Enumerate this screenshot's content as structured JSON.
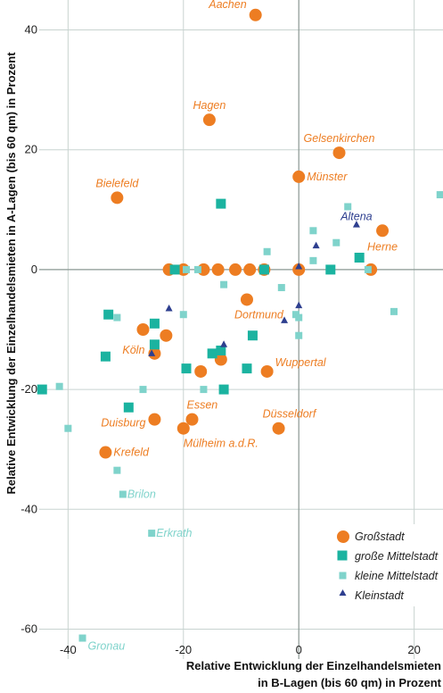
{
  "chart_data": {
    "type": "scatter",
    "title": "",
    "xlabel_lines": [
      "Relative Entwicklung der Einzelhandelsmieten",
      "in B-Lagen (bis 60 qm) in Prozent"
    ],
    "ylabel": "Relative Entwicklung der Einzelhandelsmieten in A-Lagen (bis 60 qm) in Prozent",
    "xlim": [
      -45,
      25
    ],
    "ylim": [
      -65,
      45
    ],
    "xticks": [
      -40,
      -20,
      0,
      20
    ],
    "yticks": [
      -60,
      -40,
      -20,
      0,
      20,
      40
    ],
    "xtick_labels": [
      "-40",
      "-20",
      "0",
      "20"
    ],
    "ytick_labels": [
      "-60",
      "-40",
      "-20",
      "0",
      "20",
      "40"
    ],
    "grid": true,
    "legend_position": "bottom-right",
    "colors": {
      "grossstadt": "#ED7D22",
      "grosse_mittelstadt": "#1BB3A0",
      "kleine_mittelstadt": "#7FD3CB",
      "kleinstadt": "#2E3F8F"
    },
    "series": [
      {
        "name": "Großstadt",
        "key": "grossstadt",
        "marker": "circle",
        "points": [
          {
            "x": -7.5,
            "y": 42.5,
            "label": "Aachen"
          },
          {
            "x": -15.5,
            "y": 25,
            "label": "Hagen"
          },
          {
            "x": 7,
            "y": 19.5,
            "label": "Gelsenkirchen"
          },
          {
            "x": 0,
            "y": 15.5,
            "label": "Münster"
          },
          {
            "x": -31.5,
            "y": 12,
            "label": "Bielefeld"
          },
          {
            "x": 14.5,
            "y": 6.5,
            "label": "Herne"
          },
          {
            "x": -22.5,
            "y": 0
          },
          {
            "x": -20,
            "y": 0
          },
          {
            "x": -16.5,
            "y": 0
          },
          {
            "x": -14,
            "y": 0
          },
          {
            "x": -11,
            "y": 0
          },
          {
            "x": -8.5,
            "y": 0
          },
          {
            "x": -6,
            "y": 0
          },
          {
            "x": 0,
            "y": 0
          },
          {
            "x": 12.5,
            "y": 0
          },
          {
            "x": -9,
            "y": -5,
            "label": "Dortmund"
          },
          {
            "x": -27,
            "y": -10
          },
          {
            "x": -23,
            "y": -11
          },
          {
            "x": -25,
            "y": -14,
            "label": "Köln"
          },
          {
            "x": -13.5,
            "y": -15
          },
          {
            "x": -17,
            "y": -17
          },
          {
            "x": -5.5,
            "y": -17,
            "label": "Wuppertal"
          },
          {
            "x": -25,
            "y": -25,
            "label": "Duisburg"
          },
          {
            "x": -18.5,
            "y": -25,
            "label": "Essen"
          },
          {
            "x": -20,
            "y": -26.5,
            "label": "Mülheim a.d.R."
          },
          {
            "x": -3.5,
            "y": -26.5,
            "label": "Düsseldorf"
          },
          {
            "x": -33.5,
            "y": -30.5,
            "label": "Krefeld"
          }
        ]
      },
      {
        "name": "große Mittelstadt",
        "key": "grosse_mittelstadt",
        "marker": "square",
        "points": [
          {
            "x": -13.5,
            "y": 11
          },
          {
            "x": -21.5,
            "y": 0
          },
          {
            "x": -6,
            "y": 0
          },
          {
            "x": 5.5,
            "y": 0
          },
          {
            "x": 10.5,
            "y": 2
          },
          {
            "x": -33,
            "y": -7.5
          },
          {
            "x": -25,
            "y": -9
          },
          {
            "x": -25,
            "y": -12.5
          },
          {
            "x": -33.5,
            "y": -14.5
          },
          {
            "x": -15,
            "y": -14
          },
          {
            "x": -13.5,
            "y": -13.5
          },
          {
            "x": -8,
            "y": -11
          },
          {
            "x": -19.5,
            "y": -16.5
          },
          {
            "x": -9,
            "y": -16.5
          },
          {
            "x": -44.5,
            "y": -20
          },
          {
            "x": -13,
            "y": -20
          },
          {
            "x": -29.5,
            "y": -23
          }
        ]
      },
      {
        "name": "kleine Mittelstadt",
        "key": "kleine_mittelstadt",
        "marker": "square",
        "points": [
          {
            "x": 24.5,
            "y": 12.5
          },
          {
            "x": 8.5,
            "y": 10.5
          },
          {
            "x": 2.5,
            "y": 6.5
          },
          {
            "x": 6.5,
            "y": 4.5
          },
          {
            "x": -5.5,
            "y": 3
          },
          {
            "x": 2.5,
            "y": 1.5
          },
          {
            "x": -19.5,
            "y": 0
          },
          {
            "x": -17.5,
            "y": 0
          },
          {
            "x": 12,
            "y": 0
          },
          {
            "x": -13,
            "y": -2.5
          },
          {
            "x": -3,
            "y": -3
          },
          {
            "x": -0.5,
            "y": -7.5
          },
          {
            "x": 0,
            "y": -8
          },
          {
            "x": 16.5,
            "y": -7
          },
          {
            "x": -20,
            "y": -7.5
          },
          {
            "x": -31.5,
            "y": -8
          },
          {
            "x": 0,
            "y": -11
          },
          {
            "x": -41.5,
            "y": -19.5
          },
          {
            "x": -27,
            "y": -20
          },
          {
            "x": -16.5,
            "y": -20
          },
          {
            "x": -40,
            "y": -26.5
          },
          {
            "x": -31.5,
            "y": -33.5
          },
          {
            "x": -30.5,
            "y": -37.5,
            "label": "Brilon"
          },
          {
            "x": -25.5,
            "y": -44,
            "label": "Erkrath"
          },
          {
            "x": -37.5,
            "y": -61.5,
            "label": "Gronau"
          }
        ]
      },
      {
        "name": "Kleinstadt",
        "key": "kleinstadt",
        "marker": "triangle",
        "points": [
          {
            "x": 10,
            "y": 7.5,
            "label": "Altena"
          },
          {
            "x": 3,
            "y": 4
          },
          {
            "x": 0,
            "y": 0.5
          },
          {
            "x": 0,
            "y": -6
          },
          {
            "x": -2.5,
            "y": -8.5
          },
          {
            "x": -22.5,
            "y": -6.5
          },
          {
            "x": -13,
            "y": -12.5
          },
          {
            "x": -25.5,
            "y": -14
          }
        ]
      }
    ]
  }
}
